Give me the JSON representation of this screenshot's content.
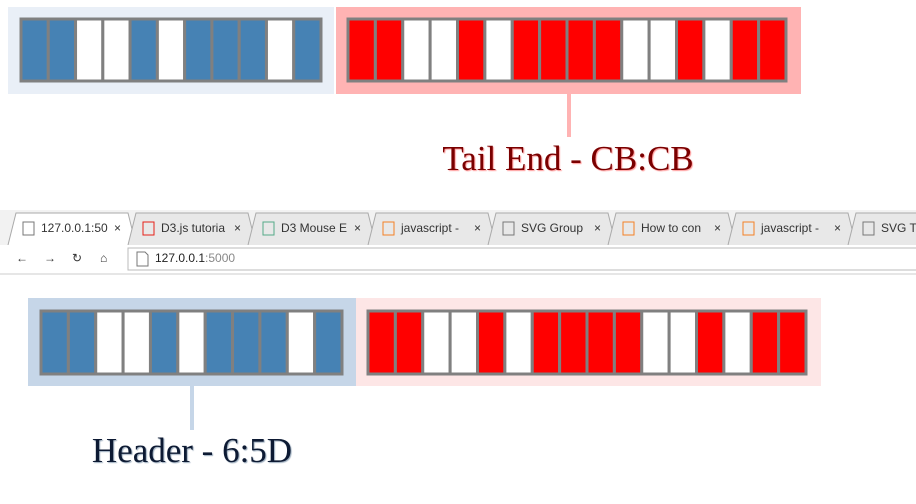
{
  "top": {
    "header_bits": [
      1,
      1,
      0,
      0,
      1,
      0,
      1,
      1,
      1,
      0,
      1
    ],
    "tail_bits": [
      1,
      1,
      0,
      0,
      1,
      0,
      1,
      1,
      1,
      1,
      0,
      0,
      1,
      0,
      1,
      1
    ],
    "label": "Tail End - CB:CB"
  },
  "browser": {
    "tabs": [
      "127.0.0.1:50",
      "D3.js tutoria",
      "D3 Mouse E",
      "javascript -",
      "SVG Group",
      "How to con",
      "javascript -",
      "SVG Te"
    ],
    "url_host": "127.0.0.1",
    "url_port": ":5000"
  },
  "bottom": {
    "header_bits": [
      1,
      1,
      0,
      0,
      1,
      0,
      1,
      1,
      1,
      0,
      1
    ],
    "tail_bits": [
      1,
      1,
      0,
      0,
      1,
      0,
      1,
      1,
      1,
      1,
      0,
      0,
      1,
      0,
      1,
      1
    ],
    "label": "Header - 6:5D"
  }
}
